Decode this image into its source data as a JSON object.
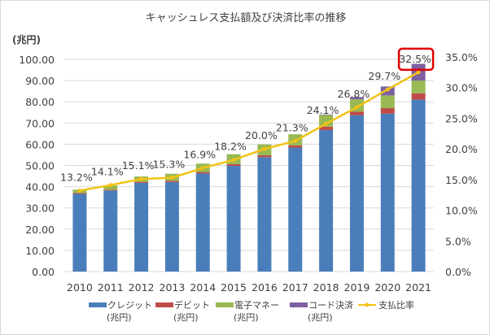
{
  "chart_data": {
    "type": "bar",
    "title": "キャッシュレス支払額及び決済比率の推移",
    "ylabel": "(兆円)",
    "ylim": [
      0,
      100
    ],
    "y2lim": [
      0,
      35
    ],
    "yticks": [
      "0.00",
      "10.00",
      "20.00",
      "30.00",
      "40.00",
      "50.00",
      "60.00",
      "70.00",
      "80.00",
      "90.00",
      "100.00"
    ],
    "y2ticks": [
      "0.0%",
      "5.0%",
      "10.0%",
      "15.0%",
      "20.0%",
      "25.0%",
      "30.0%",
      "35.0%"
    ],
    "categories": [
      "2010",
      "2011",
      "2012",
      "2013",
      "2014",
      "2015",
      "2016",
      "2017",
      "2018",
      "2019",
      "2020",
      "2021"
    ],
    "series": [
      {
        "name": "クレジット",
        "unit": "(兆円)",
        "color": "#4a7ebb",
        "values": [
          36.6,
          38.2,
          41.8,
          42.2,
          46.2,
          49.8,
          53.9,
          58.4,
          66.7,
          73.7,
          74.4,
          81.0
        ]
      },
      {
        "name": "デビット",
        "unit": "(兆円)",
        "color": "#be4b48",
        "values": [
          0.4,
          0.4,
          0.5,
          0.6,
          0.7,
          0.8,
          0.9,
          1.1,
          1.6,
          1.7,
          2.6,
          3.0
        ]
      },
      {
        "name": "電子マネー",
        "unit": "(兆円)",
        "color": "#98b954",
        "values": [
          1.6,
          2.0,
          2.5,
          3.3,
          4.0,
          4.7,
          5.1,
          5.2,
          5.5,
          5.8,
          6.0,
          6.0
        ]
      },
      {
        "name": "コード決済",
        "unit": "(兆円)",
        "color": "#7d60a0",
        "values": [
          0,
          0,
          0,
          0,
          0,
          0,
          0,
          0,
          0.2,
          1.0,
          4.2,
          7.9
        ]
      }
    ],
    "line": {
      "name": "支払比率",
      "color": "#f2c314",
      "axis": "right",
      "values": [
        13.2,
        14.1,
        15.1,
        15.3,
        16.9,
        18.2,
        20.0,
        21.3,
        24.1,
        26.8,
        29.7,
        32.5
      ],
      "labels": [
        "13.2%",
        "14.1%",
        "15.1%",
        "15.3%",
        "16.9%",
        "18.2%",
        "20.0%",
        "21.3%",
        "24.1%",
        "26.8%",
        "29.7%",
        "32.5%"
      ]
    },
    "highlight": {
      "index": 11,
      "color": "#e00000"
    },
    "legend": "bottom"
  }
}
